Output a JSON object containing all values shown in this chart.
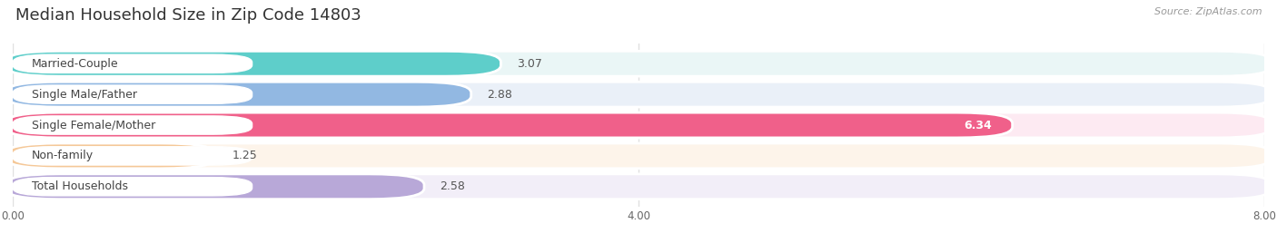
{
  "title": "Median Household Size in Zip Code 14803",
  "source": "Source: ZipAtlas.com",
  "categories": [
    "Married-Couple",
    "Single Male/Father",
    "Single Female/Mother",
    "Non-family",
    "Total Households"
  ],
  "values": [
    3.07,
    2.88,
    6.34,
    1.25,
    2.58
  ],
  "bar_colors": [
    "#5ececa",
    "#92b8e2",
    "#f0608a",
    "#f5c898",
    "#b8a8d8"
  ],
  "bar_bg_colors": [
    "#eaf6f6",
    "#eaf0f8",
    "#fdeaf2",
    "#fdf4ea",
    "#f2eef8"
  ],
  "value_inside": [
    false,
    false,
    true,
    false,
    false
  ],
  "xlim": [
    0,
    8.0
  ],
  "xticks": [
    0.0,
    4.0,
    8.0
  ],
  "xtick_labels": [
    "0.00",
    "4.00",
    "8.00"
  ],
  "title_fontsize": 13,
  "label_fontsize": 9,
  "value_fontsize": 9,
  "background_color": "#ffffff",
  "grid_color": "#e0e0e0"
}
